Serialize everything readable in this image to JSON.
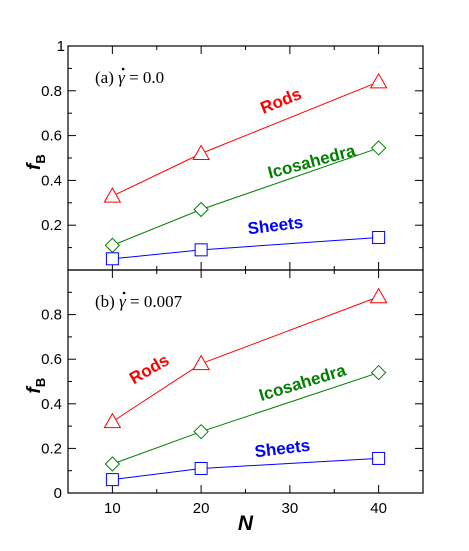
{
  "chart_data": [
    {
      "type": "line",
      "panel_label": "(a) γ̇ = 0.0",
      "panel_label_prefix": "(a)",
      "panel_label_symbol": "γ",
      "panel_label_value": "= 0.0",
      "xlabel": "",
      "ylabel": "fB",
      "ylabel_main": "f",
      "ylabel_sub": "B",
      "xlim": [
        5,
        45
      ],
      "ylim": [
        0,
        1
      ],
      "x_ticks": [
        10,
        20,
        30,
        40
      ],
      "y_ticks": [
        0.2,
        0.4,
        0.6,
        0.8
      ],
      "y_tick_labels": [
        "0.2",
        "0.4",
        "0.6",
        "0.8"
      ],
      "y_top_label": "1",
      "series": [
        {
          "name": "Rods",
          "color": "#ff0000",
          "marker": "triangle",
          "x": [
            10,
            20,
            40
          ],
          "y": [
            0.33,
            0.52,
            0.84
          ]
        },
        {
          "name": "Icosahedra",
          "color": "#008000",
          "marker": "diamond",
          "x": [
            10,
            20,
            40
          ],
          "y": [
            0.11,
            0.27,
            0.545
          ]
        },
        {
          "name": "Sheets",
          "color": "#0000ff",
          "marker": "square",
          "x": [
            10,
            20,
            40
          ],
          "y": [
            0.05,
            0.09,
            0.145
          ]
        }
      ]
    },
    {
      "type": "line",
      "panel_label": "(b) γ̇ = 0.007",
      "panel_label_prefix": "(b)",
      "panel_label_symbol": "γ",
      "panel_label_value": "= 0.007",
      "xlabel": "N",
      "ylabel": "fB",
      "ylabel_main": "f",
      "ylabel_sub": "B",
      "xlim": [
        5,
        45
      ],
      "ylim": [
        0,
        1
      ],
      "x_ticks": [
        10,
        20,
        30,
        40
      ],
      "x_tick_labels": [
        "10",
        "20",
        "30",
        "40"
      ],
      "y_ticks": [
        0,
        0.2,
        0.4,
        0.6,
        0.8
      ],
      "y_tick_labels": [
        "0",
        "0.2",
        "0.4",
        "0.6",
        "0.8"
      ],
      "series": [
        {
          "name": "Rods",
          "color": "#ff0000",
          "marker": "triangle",
          "x": [
            10,
            20,
            40
          ],
          "y": [
            0.32,
            0.58,
            0.88
          ]
        },
        {
          "name": "Icosahedra",
          "color": "#008000",
          "marker": "diamond",
          "x": [
            10,
            20,
            40
          ],
          "y": [
            0.13,
            0.275,
            0.54
          ]
        },
        {
          "name": "Sheets",
          "color": "#0000ff",
          "marker": "square",
          "x": [
            10,
            20,
            40
          ],
          "y": [
            0.06,
            0.11,
            0.155
          ]
        }
      ]
    }
  ]
}
